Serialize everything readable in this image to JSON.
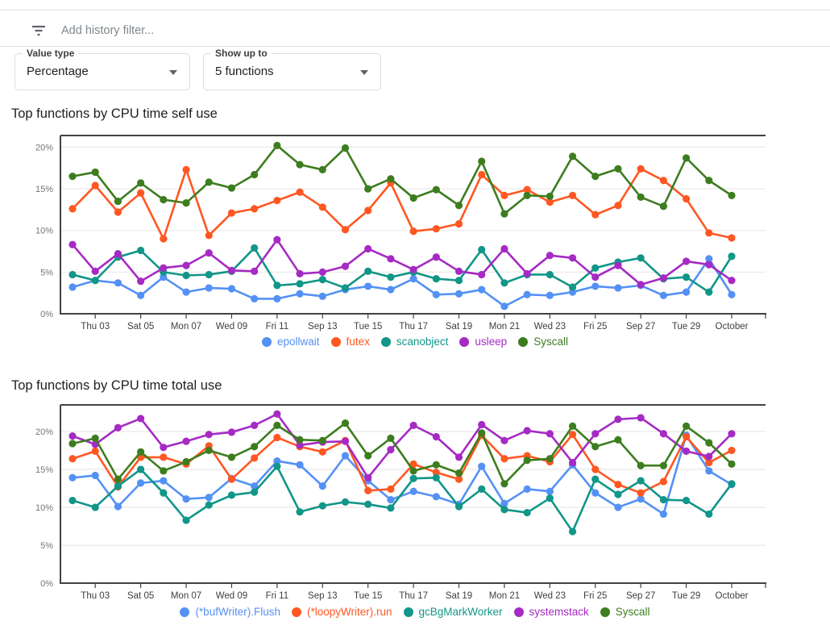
{
  "filter_bar": {
    "placeholder": "Add history filter..."
  },
  "controls": {
    "value_type": {
      "label": "Value type",
      "value": "Percentage"
    },
    "show_up_to": {
      "label": "Show up to",
      "value": "5 functions"
    }
  },
  "chart_data": [
    {
      "type": "line",
      "title": "Top functions by CPU time self use",
      "ylabel": "",
      "xlabel": "",
      "grid": true,
      "legend_position": "bottom",
      "ytick_values": [
        0,
        5,
        10,
        15,
        20
      ],
      "ytick_labels": [
        "0%",
        "5%",
        "10%",
        "15%",
        "20%"
      ],
      "ylim": [
        0,
        21.4
      ],
      "n_points": 30,
      "tick_labels": [
        "Thu 03",
        "Sat 05",
        "Mon 07",
        "Wed 09",
        "Fri 11",
        "Sep 13",
        "Tue 15",
        "Thu 17",
        "Sat 19",
        "Mon 21",
        "Wed 23",
        "Fri 25",
        "Sep 27",
        "Tue 29",
        "October"
      ],
      "tick_indices": [
        1,
        3,
        5,
        7,
        9,
        11,
        13,
        15,
        17,
        19,
        21,
        23,
        25,
        27,
        29
      ],
      "series": [
        {
          "name": "epollwait",
          "color": "#5491f5",
          "values": [
            3.2,
            4.0,
            3.7,
            2.2,
            4.4,
            2.6,
            3.1,
            3.0,
            1.8,
            1.8,
            2.4,
            2.1,
            2.9,
            3.3,
            2.9,
            4.2,
            2.3,
            2.4,
            2.9,
            0.9,
            2.3,
            2.2,
            2.6,
            3.3,
            3.1,
            3.4,
            2.2,
            2.6,
            6.6,
            2.3
          ]
        },
        {
          "name": "futex",
          "color": "#ff5722",
          "values": [
            12.6,
            15.4,
            12.2,
            14.5,
            9.0,
            17.3,
            9.4,
            12.1,
            12.6,
            13.6,
            14.6,
            12.8,
            10.1,
            12.4,
            15.7,
            9.9,
            10.2,
            10.8,
            16.7,
            14.2,
            14.9,
            13.4,
            14.2,
            11.9,
            13.0,
            17.4,
            16.0,
            13.8,
            9.7,
            9.1
          ]
        },
        {
          "name": "scanobject",
          "color": "#119688",
          "values": [
            4.7,
            4.0,
            6.8,
            7.6,
            5.0,
            4.6,
            4.7,
            5.1,
            7.9,
            3.4,
            3.6,
            4.1,
            3.1,
            5.1,
            4.4,
            5.0,
            4.2,
            4.0,
            7.7,
            3.7,
            4.7,
            4.7,
            3.2,
            5.5,
            6.2,
            6.7,
            4.2,
            4.4,
            2.6,
            6.9
          ]
        },
        {
          "name": "usleep",
          "color": "#a62ac4",
          "values": [
            8.3,
            5.1,
            7.2,
            3.9,
            5.5,
            5.8,
            7.3,
            5.2,
            5.1,
            8.9,
            4.8,
            5.0,
            5.7,
            7.8,
            6.6,
            5.3,
            6.8,
            5.1,
            4.7,
            7.8,
            4.8,
            7.0,
            6.7,
            4.4,
            5.8,
            3.5,
            4.3,
            6.3,
            5.9,
            4.0
          ]
        },
        {
          "name": "Syscall",
          "color": "#3d7d1f",
          "values": [
            16.5,
            17.0,
            13.5,
            15.7,
            13.7,
            13.3,
            15.8,
            15.1,
            16.7,
            20.2,
            17.9,
            17.3,
            19.9,
            15.0,
            16.2,
            13.9,
            14.9,
            13.0,
            18.3,
            12.0,
            14.2,
            14.1,
            18.9,
            16.5,
            17.4,
            14.0,
            12.9,
            18.7,
            16.0,
            14.2
          ]
        }
      ]
    },
    {
      "type": "line",
      "title": "Top functions by CPU time total use",
      "ylabel": "",
      "xlabel": "",
      "grid": true,
      "legend_position": "bottom",
      "ytick_values": [
        0,
        5,
        10,
        15,
        20
      ],
      "ytick_labels": [
        "0%",
        "5%",
        "10%",
        "15%",
        "20%"
      ],
      "ylim": [
        0,
        23.5
      ],
      "n_points": 30,
      "tick_labels": [
        "Thu 03",
        "Sat 05",
        "Mon 07",
        "Wed 09",
        "Fri 11",
        "Sep 13",
        "Tue 15",
        "Thu 17",
        "Sat 19",
        "Mon 21",
        "Wed 23",
        "Fri 25",
        "Sep 27",
        "Tue 29",
        "October"
      ],
      "tick_indices": [
        1,
        3,
        5,
        7,
        9,
        11,
        13,
        15,
        17,
        19,
        21,
        23,
        25,
        27,
        29
      ],
      "series": [
        {
          "name": "(*bufWriter).Flush",
          "color": "#5491f5",
          "values": [
            13.9,
            14.2,
            10.1,
            13.2,
            13.5,
            11.1,
            11.3,
            13.8,
            12.8,
            16.1,
            15.6,
            12.8,
            16.8,
            13.5,
            11.0,
            12.1,
            11.4,
            10.4,
            15.4,
            10.5,
            12.4,
            12.1,
            15.6,
            11.9,
            10.0,
            11.1,
            9.1,
            19.5,
            14.8,
            13.0
          ]
        },
        {
          "name": "(*loopyWriter).run",
          "color": "#ff5722",
          "values": [
            16.4,
            17.4,
            12.7,
            16.6,
            16.6,
            15.7,
            18.1,
            13.7,
            16.5,
            19.2,
            18.0,
            17.3,
            18.8,
            12.2,
            12.4,
            15.7,
            14.6,
            13.7,
            19.5,
            16.4,
            16.8,
            16.0,
            19.6,
            15.0,
            13.0,
            11.9,
            13.4,
            19.3,
            15.9,
            17.5
          ]
        },
        {
          "name": "gcBgMarkWorker",
          "color": "#119688",
          "values": [
            10.9,
            10.0,
            12.8,
            15.0,
            11.9,
            8.3,
            10.3,
            11.6,
            12.0,
            15.4,
            9.4,
            10.2,
            10.7,
            10.4,
            9.9,
            13.8,
            13.9,
            10.1,
            12.4,
            9.7,
            9.3,
            11.2,
            6.8,
            13.7,
            11.7,
            13.5,
            11.0,
            10.9,
            9.1,
            13.1
          ]
        },
        {
          "name": "systemstack",
          "color": "#a62ac4",
          "values": [
            19.4,
            18.3,
            20.5,
            21.7,
            17.9,
            18.7,
            19.6,
            19.9,
            20.8,
            22.3,
            18.2,
            18.6,
            18.7,
            13.9,
            17.6,
            20.8,
            19.3,
            16.6,
            20.9,
            18.8,
            20.1,
            19.7,
            15.9,
            19.7,
            21.6,
            21.8,
            19.7,
            17.4,
            16.7,
            19.7
          ]
        },
        {
          "name": "Syscall",
          "color": "#3d7d1f",
          "values": [
            18.4,
            19.1,
            13.7,
            17.3,
            14.8,
            16.0,
            17.5,
            16.6,
            18.0,
            20.8,
            18.9,
            18.8,
            21.1,
            16.8,
            19.1,
            14.8,
            15.6,
            14.5,
            19.8,
            13.1,
            16.2,
            16.4,
            20.7,
            18.0,
            18.9,
            15.5,
            15.5,
            20.7,
            18.5,
            15.7
          ]
        }
      ]
    }
  ]
}
